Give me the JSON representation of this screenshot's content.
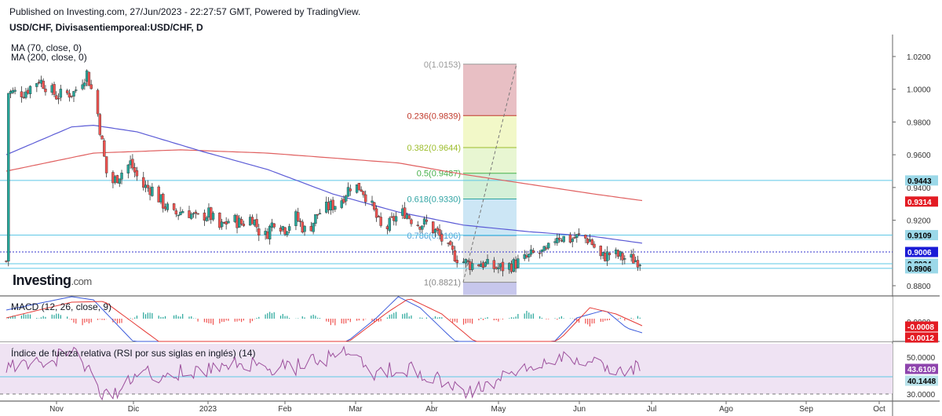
{
  "header": {
    "published": "Published on Investing.com, 27/Jun/2023 - 22:27:57 GMT, Powered by TradingView.",
    "symbol_title": "USD/CHF, Divisasentiemporeal:USD/CHF, D"
  },
  "legend": {
    "ma70": "MA (70, close, 0)",
    "ma200": "MA (200, close, 0)",
    "macd": "MACD (12, 26, close, 9)",
    "rsi": "Índice de fuerza relativa (RSI por sus siglas en inglés) (14)"
  },
  "logo": {
    "brand": "Investing",
    "suffix": ".com"
  },
  "colors": {
    "up": "#26a69a",
    "down": "#ef5350",
    "ma70": "#5b5bd6",
    "ma200": "#e06060",
    "macd_line": "#3b5bdb",
    "signal_line": "#e53935",
    "rsi_line": "#9c4f9c",
    "rsi_band": "#efe3f3",
    "hline": "#5ec8e6",
    "axis_text": "#333333",
    "badge_red": "#e31b23",
    "badge_blue": "#1b1bd6",
    "badge_cyan": "#9bd8e8",
    "badge_purple": "#8e44ad",
    "badge_teal": "#b8e2ea"
  },
  "chart_data": [
    {
      "type": "candlestick",
      "title": "USD/CHF, Divisasentiemporeal:USD/CHF, D",
      "x_labels": [
        "Nov",
        "Dic",
        "2023",
        "Feb",
        "Mar",
        "Abr",
        "May",
        "Jun",
        "Jul",
        "Ago",
        "Sep",
        "Oct"
      ],
      "y_ticks": [
        "1.0200",
        "1.0000",
        "0.9800",
        "0.9600",
        "0.9400",
        "0.9200",
        "0.8800"
      ],
      "ylim": [
        0.868,
        1.0265
      ],
      "series_close_approx": [
        [
          1,
          0.998
        ],
        [
          8,
          0.998
        ],
        [
          15,
          1.006
        ],
        [
          23,
          0.996
        ],
        [
          31,
          0.998
        ],
        [
          37,
          1.01
        ],
        [
          42,
          0.985
        ],
        [
          47,
          0.94
        ],
        [
          52,
          0.948
        ],
        [
          57,
          0.955
        ],
        [
          62,
          0.941
        ],
        [
          67,
          0.939
        ],
        [
          72,
          0.93
        ],
        [
          77,
          0.923
        ],
        [
          82,
          0.927
        ],
        [
          87,
          0.921
        ],
        [
          93,
          0.924
        ],
        [
          98,
          0.915
        ],
        [
          103,
          0.921
        ],
        [
          108,
          0.918
        ],
        [
          113,
          0.922
        ],
        [
          118,
          0.908
        ],
        [
          123,
          0.92
        ],
        [
          128,
          0.915
        ],
        [
          133,
          0.922
        ],
        [
          138,
          0.912
        ],
        [
          143,
          0.924
        ],
        [
          148,
          0.928
        ],
        [
          153,
          0.931
        ],
        [
          158,
          0.941
        ],
        [
          163,
          0.94
        ],
        [
          168,
          0.928
        ],
        [
          173,
          0.912
        ],
        [
          178,
          0.921
        ],
        [
          183,
          0.925
        ],
        [
          188,
          0.918
        ],
        [
          193,
          0.918
        ],
        [
          198,
          0.912
        ],
        [
          203,
          0.902
        ],
        [
          208,
          0.896
        ],
        [
          213,
          0.893
        ],
        [
          218,
          0.894
        ],
        [
          223,
          0.891
        ],
        [
          228,
          0.891
        ],
        [
          233,
          0.893
        ],
        [
          238,
          0.896
        ],
        [
          243,
          0.9
        ],
        [
          248,
          0.9
        ],
        [
          253,
          0.911
        ],
        [
          258,
          0.908
        ],
        [
          263,
          0.91
        ],
        [
          268,
          0.908
        ],
        [
          273,
          0.897
        ],
        [
          278,
          0.9
        ],
        [
          283,
          0.897
        ],
        [
          288,
          0.896
        ],
        [
          292,
          0.895
        ]
      ],
      "ma70_approx": [
        [
          0,
          0.96
        ],
        [
          30,
          0.977
        ],
        [
          40,
          0.978
        ],
        [
          60,
          0.974
        ],
        [
          90,
          0.962
        ],
        [
          120,
          0.951
        ],
        [
          150,
          0.936
        ],
        [
          180,
          0.925
        ],
        [
          210,
          0.917
        ],
        [
          240,
          0.913
        ],
        [
          270,
          0.91
        ],
        [
          292,
          0.906
        ]
      ],
      "ma200_approx": [
        [
          0,
          0.95
        ],
        [
          40,
          0.961
        ],
        [
          80,
          0.963
        ],
        [
          120,
          0.961
        ],
        [
          150,
          0.958
        ],
        [
          180,
          0.955
        ],
        [
          210,
          0.948
        ],
        [
          240,
          0.942
        ],
        [
          270,
          0.936
        ],
        [
          292,
          0.932
        ]
      ],
      "fibonacci": {
        "levels": [
          {
            "label": "0(1.0153)",
            "value": 1.0153
          },
          {
            "label": "0.236(0.9839)",
            "value": 0.9839
          },
          {
            "label": "0.382(0.9644)",
            "value": 0.9644
          },
          {
            "label": "0.5(0.9487)",
            "value": 0.9487
          },
          {
            "label": "0.618(0.9330)",
            "value": 0.933
          },
          {
            "label": "0.786(0.9106)",
            "value": 0.9106
          },
          {
            "label": "1(0.8821)",
            "value": 0.8821
          }
        ],
        "colors": [
          "#e8bfc4",
          "#f2f8c8",
          "#e8f6d2",
          "#d4f0d8",
          "#cce6f5",
          "#e3e3e3"
        ]
      },
      "horizontal_lines": [
        0.9443,
        0.9109,
        0.8934,
        0.8906
      ],
      "price_badges": [
        {
          "value": "0.9443",
          "y": 0.9443,
          "style": "cyan"
        },
        {
          "value": "0.9314",
          "y": 0.9314,
          "style": "red"
        },
        {
          "value": "0.9109",
          "y": 0.9109,
          "style": "cyan"
        },
        {
          "value": "0.9006",
          "y": 0.9006,
          "style": "blue"
        },
        {
          "value": "0.8934",
          "y": 0.8934,
          "style": "cyan"
        },
        {
          "value": "0.8906",
          "y": 0.8906,
          "style": "cyan"
        }
      ]
    },
    {
      "type": "line",
      "title": "MACD (12, 26, close, 9)",
      "y_ticks": [
        "0.0000"
      ],
      "badges": [
        {
          "value": "-0.0008",
          "style": "red"
        },
        {
          "value": "-0.0012",
          "style": "red"
        }
      ]
    },
    {
      "type": "line",
      "title": "Índice de fuerza relativa (RSI por sus siglas en inglés) (14)",
      "y_ticks": [
        "50.0000",
        "30.0000"
      ],
      "badges": [
        {
          "value": "43.6109",
          "style": "purple"
        },
        {
          "value": "40.1448",
          "style": "teal"
        }
      ]
    }
  ]
}
